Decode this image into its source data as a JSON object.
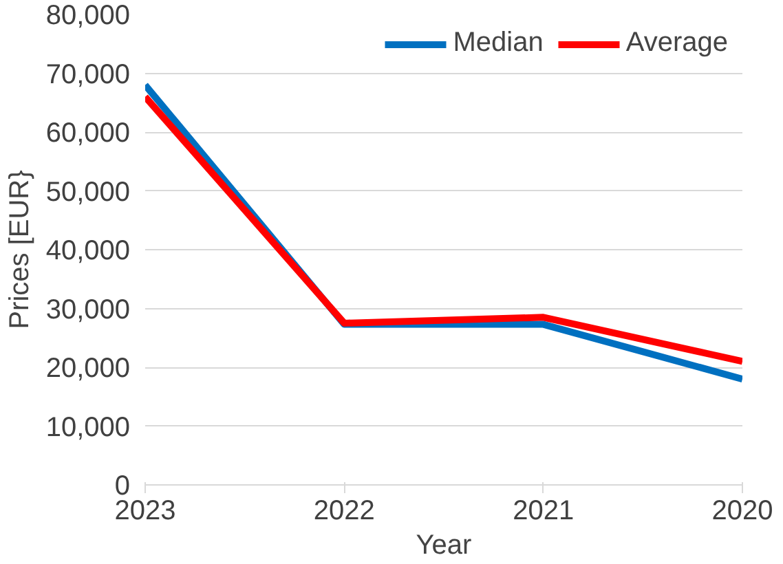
{
  "chart_data": {
    "type": "line",
    "xlabel": "Year",
    "ylabel": "Prices [EUR}",
    "categories": [
      "2023",
      "2022",
      "2021",
      "2020"
    ],
    "series": [
      {
        "name": "Median",
        "color": "#0070c0",
        "values": [
          68000,
          27300,
          27300,
          18000
        ]
      },
      {
        "name": "Average",
        "color": "#ff0000",
        "values": [
          66000,
          27500,
          28500,
          21000
        ]
      }
    ],
    "ylim": [
      0,
      80000
    ],
    "yticks": [
      {
        "value": 0,
        "label": "0"
      },
      {
        "value": 10000,
        "label": "10,000"
      },
      {
        "value": 20000,
        "label": "20,000"
      },
      {
        "value": 30000,
        "label": "30,000"
      },
      {
        "value": 40000,
        "label": "40,000"
      },
      {
        "value": 50000,
        "label": "50,000"
      },
      {
        "value": 60000,
        "label": "60,000"
      },
      {
        "value": 70000,
        "label": "70,000"
      },
      {
        "value": 80000,
        "label": "80,000"
      }
    ],
    "grid": "y",
    "legend": "top right",
    "line_style": "solid",
    "marker": "none"
  }
}
